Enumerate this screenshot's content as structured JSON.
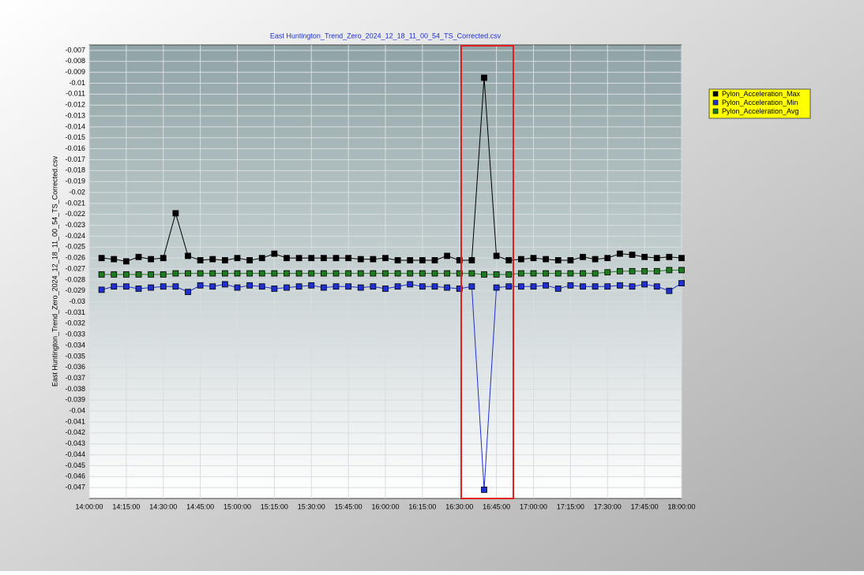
{
  "chart_data": {
    "type": "line",
    "title": "East Huntington_Trend_Zero_2024_12_18_11_00_54_TS_Corrected.csv",
    "y_label": "East Huntington_Trend_Zero_2024_12_18_11_00_54_TS_Corrected.csv",
    "x": [
      "14:05:00",
      "14:10:00",
      "14:15:00",
      "14:20:00",
      "14:25:00",
      "14:30:00",
      "14:35:00",
      "14:40:00",
      "14:45:00",
      "14:50:00",
      "14:55:00",
      "15:00:00",
      "15:05:00",
      "15:10:00",
      "15:15:00",
      "15:20:00",
      "15:25:00",
      "15:30:00",
      "15:35:00",
      "15:40:00",
      "15:45:00",
      "15:50:00",
      "15:55:00",
      "16:00:00",
      "16:05:00",
      "16:10:00",
      "16:15:00",
      "16:20:00",
      "16:25:00",
      "16:30:00",
      "16:35:00",
      "16:40:00",
      "16:45:00",
      "16:50:00",
      "16:55:00",
      "17:00:00",
      "17:05:00",
      "17:10:00",
      "17:15:00",
      "17:20:00",
      "17:25:00",
      "17:30:00",
      "17:35:00",
      "17:40:00",
      "17:45:00",
      "17:50:00",
      "17:55:00",
      "18:00:00"
    ],
    "series": [
      {
        "name": "Pylon_Acceleration_Max",
        "color": "#000000",
        "values": [
          -0.026,
          -0.0261,
          -0.0263,
          -0.0259,
          -0.0261,
          -0.026,
          -0.0219,
          -0.0258,
          -0.0262,
          -0.0261,
          -0.0262,
          -0.026,
          -0.0262,
          -0.026,
          -0.0256,
          -0.026,
          -0.026,
          -0.026,
          -0.026,
          -0.026,
          -0.026,
          -0.0261,
          -0.0261,
          -0.026,
          -0.0262,
          -0.0262,
          -0.0262,
          -0.0262,
          -0.0258,
          -0.0262,
          -0.0262,
          -0.0095,
          -0.0258,
          -0.0262,
          -0.0261,
          -0.026,
          -0.0261,
          -0.0262,
          -0.0262,
          -0.0259,
          -0.0261,
          -0.026,
          -0.0256,
          -0.0257,
          -0.0259,
          -0.026,
          -0.0259,
          -0.026
        ]
      },
      {
        "name": "Pylon_Acceleration_Min",
        "color": "#1f2fd0",
        "values": [
          -0.0289,
          -0.0286,
          -0.0286,
          -0.0288,
          -0.0287,
          -0.0286,
          -0.0286,
          -0.0291,
          -0.0285,
          -0.0286,
          -0.0284,
          -0.0287,
          -0.0285,
          -0.0286,
          -0.0288,
          -0.0287,
          -0.0286,
          -0.0285,
          -0.0287,
          -0.0286,
          -0.0286,
          -0.0287,
          -0.0286,
          -0.0288,
          -0.0286,
          -0.0284,
          -0.0286,
          -0.0286,
          -0.0287,
          -0.0288,
          -0.0286,
          -0.0472,
          -0.0287,
          -0.0286,
          -0.0286,
          -0.0286,
          -0.0285,
          -0.0288,
          -0.0285,
          -0.0286,
          -0.0286,
          -0.0286,
          -0.0285,
          -0.0286,
          -0.0284,
          -0.0286,
          -0.029,
          -0.0283
        ]
      },
      {
        "name": "Pylon_Acceleration_Avg",
        "color": "#1e7a1e",
        "values": [
          -0.0275,
          -0.0275,
          -0.0275,
          -0.0275,
          -0.0275,
          -0.0275,
          -0.0274,
          -0.0274,
          -0.0274,
          -0.0274,
          -0.0274,
          -0.0274,
          -0.0274,
          -0.0274,
          -0.0274,
          -0.0274,
          -0.0274,
          -0.0274,
          -0.0274,
          -0.0274,
          -0.0274,
          -0.0274,
          -0.0274,
          -0.0274,
          -0.0274,
          -0.0274,
          -0.0274,
          -0.0274,
          -0.0274,
          -0.0274,
          -0.0274,
          -0.0275,
          -0.0275,
          -0.0275,
          -0.0274,
          -0.0274,
          -0.0274,
          -0.0274,
          -0.0274,
          -0.0274,
          -0.0274,
          -0.0273,
          -0.0272,
          -0.0272,
          -0.0272,
          -0.0272,
          -0.0271,
          -0.0271
        ]
      }
    ],
    "xlim": [
      "14:00:00",
      "18:00:00"
    ],
    "xticks": [
      "14:00:00",
      "14:15:00",
      "14:30:00",
      "14:45:00",
      "15:00:00",
      "15:15:00",
      "15:30:00",
      "15:45:00",
      "16:00:00",
      "16:15:00",
      "16:30:00",
      "16:45:00",
      "17:00:00",
      "17:15:00",
      "17:30:00",
      "17:45:00",
      "18:00:00"
    ],
    "ylim": [
      -0.048,
      -0.0065
    ],
    "yticks": [
      -0.007,
      -0.008,
      -0.009,
      -0.01,
      -0.011,
      -0.012,
      -0.013,
      -0.014,
      -0.015,
      -0.016,
      -0.017,
      -0.018,
      -0.019,
      -0.02,
      -0.021,
      -0.022,
      -0.023,
      -0.024,
      -0.025,
      -0.026,
      -0.027,
      -0.028,
      -0.029,
      -0.03,
      -0.031,
      -0.032,
      -0.033,
      -0.034,
      -0.035,
      -0.036,
      -0.037,
      -0.038,
      -0.039,
      -0.04,
      -0.041,
      -0.042,
      -0.043,
      -0.044,
      -0.045,
      -0.046,
      -0.047
    ],
    "grid": true
  }
}
